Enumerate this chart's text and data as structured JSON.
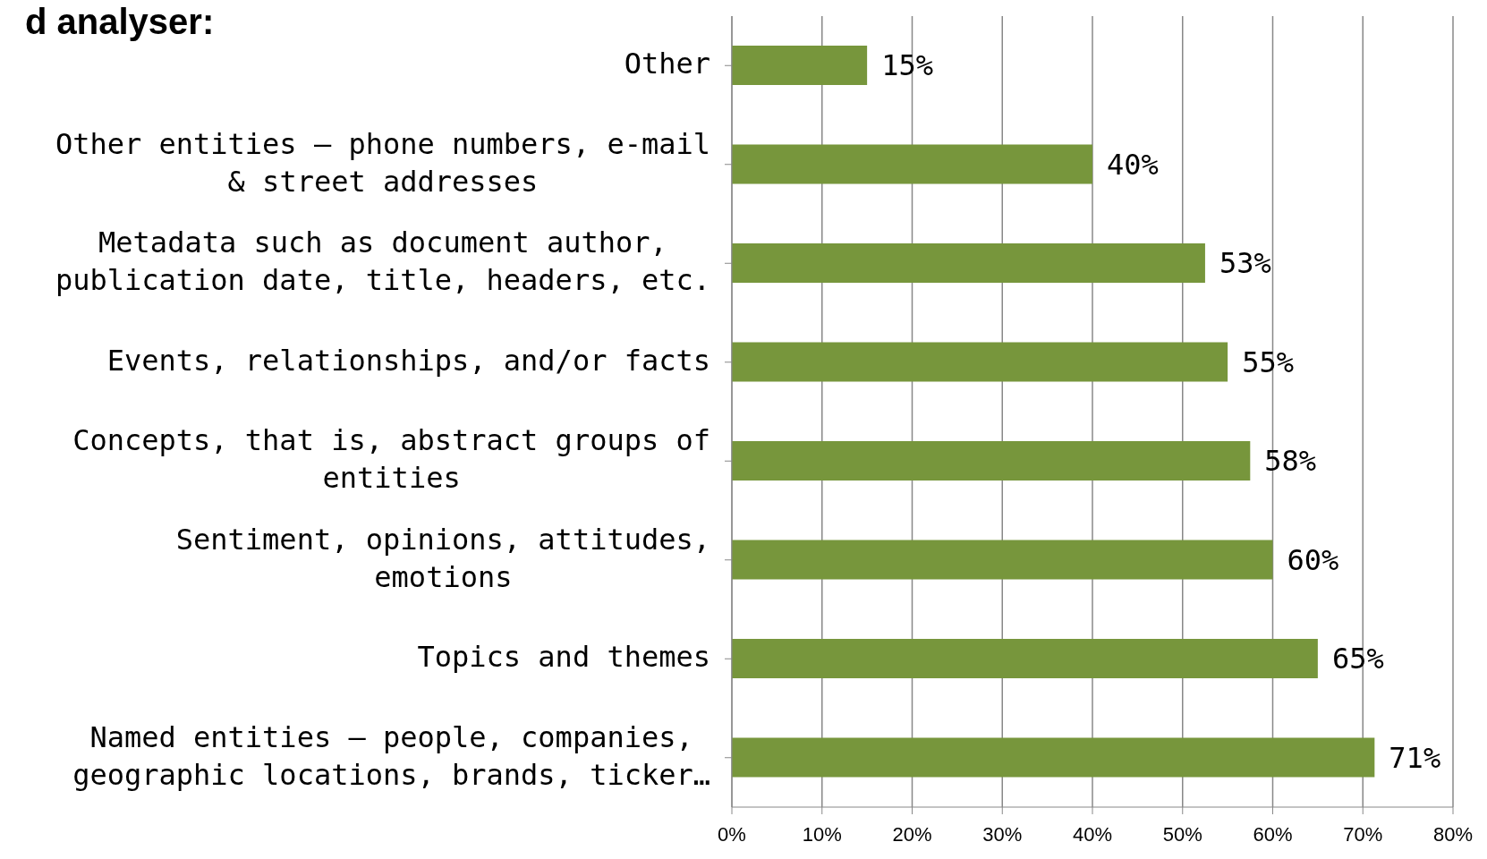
{
  "chart_data": {
    "type": "bar",
    "orientation": "horizontal",
    "title": "d analyser:",
    "categories": [
      "Other",
      "Other entities – phone numbers, e-mail & street addresses",
      "Metadata such as document author, publication date, title, headers, etc.",
      "Events, relationships, and/or facts",
      "Concepts, that is, abstract groups of entities",
      "Sentiment, opinions, attitudes, emotions",
      "Topics and themes",
      "Named entities – people, companies, geographic locations, brands, ticker…"
    ],
    "values": [
      15,
      40,
      52.5,
      55,
      57.5,
      60,
      65,
      71.3
    ],
    "value_labels": [
      "15%",
      "40%",
      "53%",
      "55%",
      "58%",
      "60%",
      "65%",
      "71%"
    ],
    "color": "#77963c",
    "xlim": [
      0,
      80
    ],
    "xticks": [
      {
        "value": 0,
        "label": "0%"
      },
      {
        "value": 10,
        "label": "10%"
      },
      {
        "value": 20,
        "label": "20%"
      },
      {
        "value": 30,
        "label": "30%"
      },
      {
        "value": 40,
        "label": "40%"
      },
      {
        "value": 50,
        "label": "50%"
      },
      {
        "value": 60,
        "label": "60%"
      },
      {
        "value": 70,
        "label": "70%"
      },
      {
        "value": 80,
        "label": "80%"
      }
    ],
    "grid": "x",
    "legend": false
  }
}
